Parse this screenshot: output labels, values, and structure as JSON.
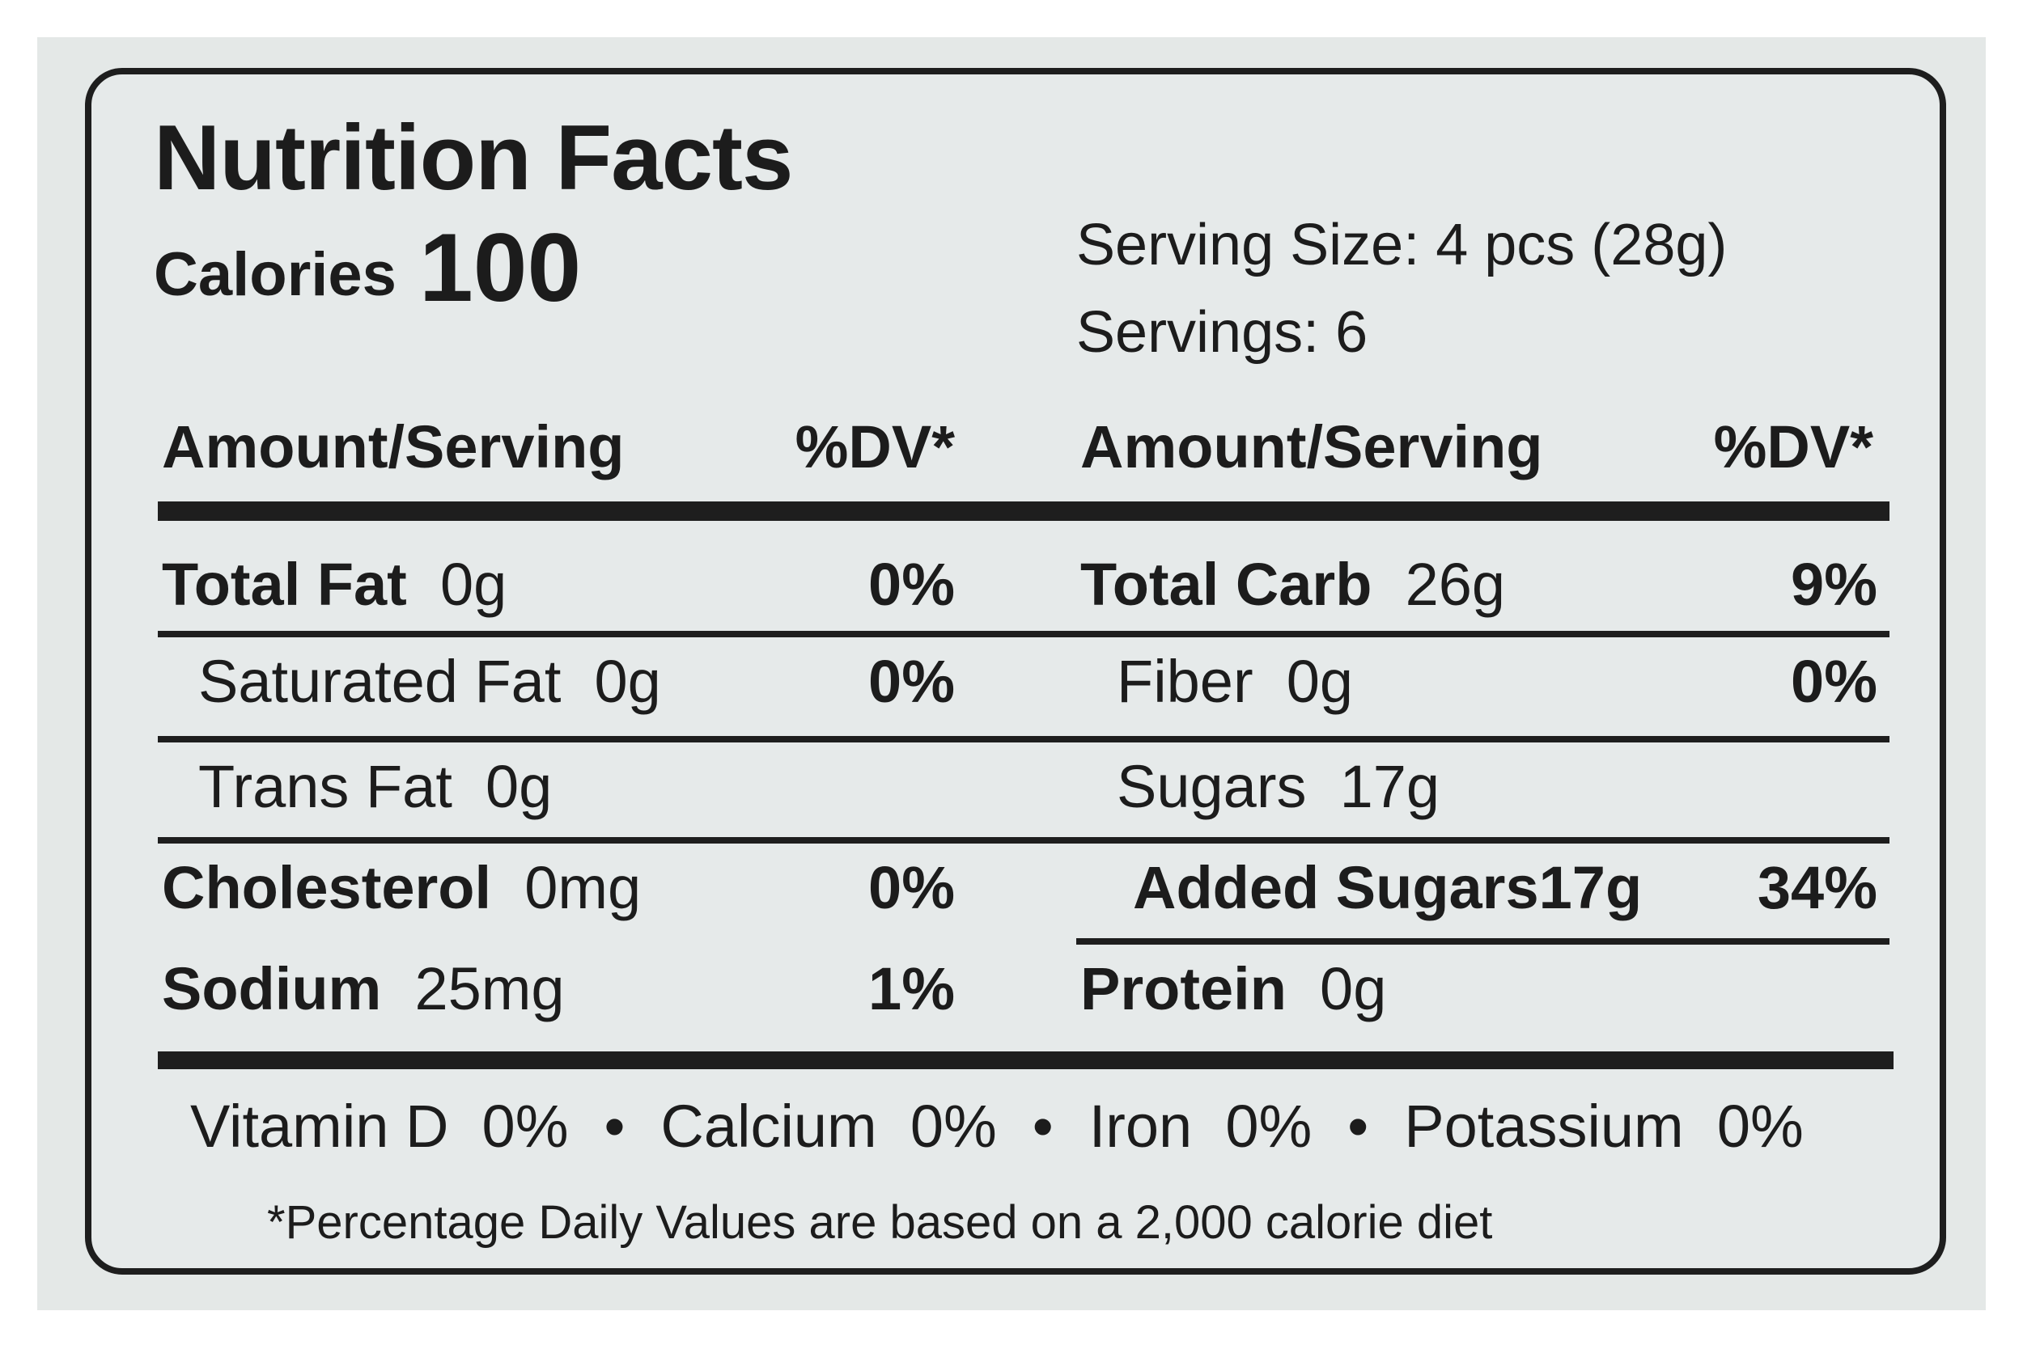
{
  "title": "Nutrition Facts",
  "calories": {
    "label": "Calories",
    "value": "100"
  },
  "serving": {
    "size": "Serving Size: 4 pcs (28g)",
    "servings": "Servings: 6"
  },
  "header": {
    "amount": "Amount/Serving",
    "dv": "%DV*"
  },
  "left_rows": [
    {
      "name": "Total Fat",
      "amount": "0g",
      "dv": "0%"
    },
    {
      "name": "Saturated Fat",
      "amount": "0g",
      "dv": "0%"
    },
    {
      "name": "Trans Fat",
      "amount": "0g",
      "dv": ""
    },
    {
      "name": "Cholesterol",
      "amount": "0mg",
      "dv": "0%"
    },
    {
      "name": "Sodium",
      "amount": "25mg",
      "dv": "1%"
    }
  ],
  "right_rows": [
    {
      "name": "Total Carb",
      "amount": "26g",
      "dv": "9%"
    },
    {
      "name": "Fiber",
      "amount": "0g",
      "dv": "0%"
    },
    {
      "name": "Sugars",
      "amount": "17g",
      "dv": ""
    },
    {
      "name": "Added Sugars",
      "amount": "17g",
      "dv": "34%"
    },
    {
      "name": "Protein",
      "amount": "0g",
      "dv": ""
    }
  ],
  "vitamins": [
    {
      "name": "Vitamin D",
      "dv": "0%"
    },
    {
      "name": "Calcium",
      "dv": "0%"
    },
    {
      "name": "Iron",
      "dv": "0%"
    },
    {
      "name": "Potassium",
      "dv": "0%"
    }
  ],
  "separator": "•",
  "footnote": "*Percentage Daily Values are based on a 2,000 calorie diet"
}
